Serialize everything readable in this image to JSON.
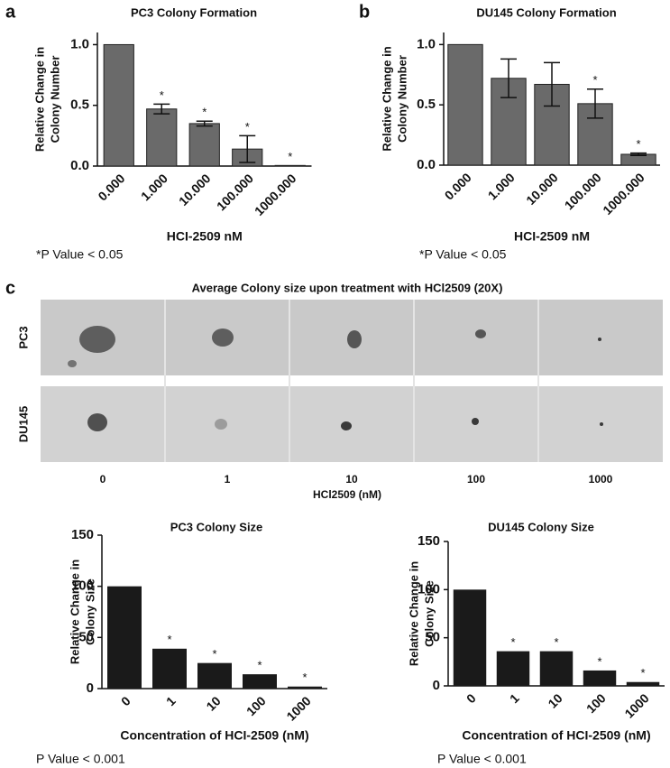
{
  "panel_labels": [
    "a",
    "b",
    "c"
  ],
  "image_panel": {
    "title": "Average Colony size upon treatment with HCl2509 (20X)",
    "rows": [
      "PC3",
      "DU145"
    ],
    "columns": [
      "0",
      "1",
      "10",
      "100",
      "1000"
    ],
    "xlabel": "HCl2509 (nM)"
  },
  "chart_data": [
    {
      "type": "bar",
      "title": "PC3 Colony Formation",
      "ylabel": [
        "Relative Change in",
        "Colony Number"
      ],
      "xlabel": "HCI-2509 nM",
      "note": "*P Value < 0.05",
      "categories": [
        "0.000",
        "1.000",
        "10.000",
        "100.000",
        "1000.000"
      ],
      "values": [
        1.0,
        0.47,
        0.35,
        0.14,
        0.005
      ],
      "errors": [
        null,
        0.04,
        0.02,
        0.11,
        null
      ],
      "annotations": [
        null,
        "*",
        "*",
        "*",
        "*"
      ],
      "color": "#6a6a6a",
      "ylim": [
        0,
        1.1
      ],
      "yticks": [
        {
          "value": 0,
          "label": "0.0"
        },
        {
          "value": 0.5,
          "label": "0.5"
        },
        {
          "value": 1,
          "label": "1.0"
        }
      ]
    },
    {
      "type": "bar",
      "title": "DU145 Colony Formation",
      "ylabel": [
        "Relative Change in",
        "Colony Number"
      ],
      "xlabel": "HCI-2509 nM",
      "note": "*P Value < 0.05",
      "categories": [
        "0.000",
        "1.000",
        "10.000",
        "100.000",
        "1000.000"
      ],
      "values": [
        1.0,
        0.72,
        0.67,
        0.51,
        0.09
      ],
      "errors": [
        null,
        0.16,
        0.18,
        0.12,
        0.01
      ],
      "annotations": [
        null,
        null,
        null,
        "*",
        "*"
      ],
      "color": "#6a6a6a",
      "ylim": [
        0,
        1.1
      ],
      "yticks": [
        {
          "value": 0,
          "label": "0.0"
        },
        {
          "value": 0.5,
          "label": "0.5"
        },
        {
          "value": 1,
          "label": "1.0"
        }
      ]
    },
    {
      "type": "bar",
      "title": "PC3 Colony Size",
      "ylabel": [
        "Relative Change in",
        "Colony Size"
      ],
      "xlabel": "Concentration of HCI-2509 (nM)",
      "note": "P Value < 0.001",
      "categories": [
        "0",
        "1",
        "10",
        "100",
        "1000"
      ],
      "values": [
        100,
        39,
        25,
        14,
        2
      ],
      "annotations": [
        null,
        "*",
        "*",
        "*",
        "*"
      ],
      "color": "#1a1a1a",
      "ylim": [
        0,
        150
      ],
      "yticks": [
        0,
        50,
        100,
        150
      ]
    },
    {
      "type": "bar",
      "title": "DU145 Colony Size",
      "ylabel": [
        "Relative Change in",
        "Colony Size"
      ],
      "xlabel": "Concentration of HCI-2509 (nM)",
      "note": "P Value < 0.001",
      "categories": [
        "0",
        "1",
        "10",
        "100",
        "1000"
      ],
      "values": [
        100,
        36,
        36,
        16,
        4
      ],
      "annotations": [
        null,
        "*",
        "*",
        "*",
        "*"
      ],
      "color": "#1a1a1a",
      "ylim": [
        0,
        150
      ],
      "yticks": [
        0,
        50,
        100,
        150
      ]
    }
  ]
}
